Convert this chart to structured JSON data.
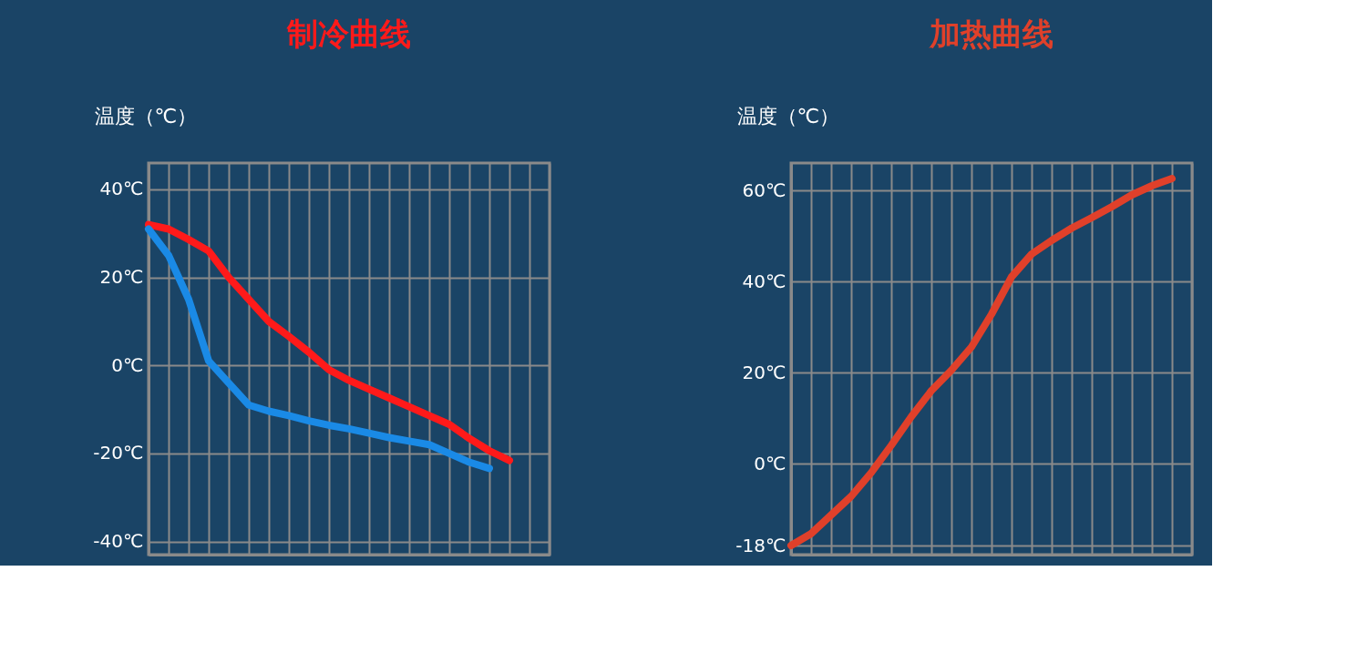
{
  "chart_data": [
    {
      "type": "line",
      "title": "制冷曲线",
      "ylabel": "温度（℃）",
      "categories": [
        null,
        null,
        null,
        null,
        null,
        null,
        null,
        null,
        null,
        null,
        null,
        null,
        null,
        null,
        null,
        null,
        null,
        null,
        null,
        null,
        null
      ],
      "series": [
        {
          "color": "#ff1a1a",
          "values": [
            32,
            31,
            28.6,
            26,
            20,
            15,
            10,
            6.6,
            3,
            -1,
            -3.4,
            -5.4,
            -7.4,
            -9.4,
            -11.4,
            -13.4,
            -16.6,
            -19.4,
            -21.6,
            null,
            null
          ]
        },
        {
          "color": "#1a8ae6",
          "values": [
            31,
            25,
            15,
            1,
            -4,
            -9,
            -10.4,
            -11.4,
            -12.6,
            -13.6,
            -14.4,
            -15.4,
            -16.4,
            -17.2,
            -18,
            -20,
            -22,
            -23.4,
            null,
            null,
            null
          ]
        }
      ],
      "ylim": [
        -43,
        46
      ],
      "yticks": [
        {
          "value": 40,
          "label": "40℃"
        },
        {
          "value": 20,
          "label": "20℃"
        },
        {
          "value": 0,
          "label": "0℃"
        },
        {
          "value": -20,
          "label": "-20℃"
        },
        {
          "value": -40,
          "label": "-40℃"
        }
      ],
      "grid": true,
      "tick_labels": "y"
    },
    {
      "type": "line",
      "title": "加热曲线",
      "ylabel": "温度（℃）",
      "categories": [
        null,
        null,
        null,
        null,
        null,
        null,
        null,
        null,
        null,
        null,
        null,
        null,
        null,
        null,
        null,
        null,
        null,
        null,
        null,
        null,
        null
      ],
      "series": [
        {
          "color": "#e0402a",
          "values": [
            -18,
            -15.4,
            -11.3,
            -7.2,
            -2,
            4,
            10.3,
            16,
            20.5,
            25.6,
            32.8,
            41,
            46,
            49,
            51.7,
            54,
            56.4,
            59,
            61,
            62.6,
            null
          ]
        }
      ],
      "ylim": [
        -20,
        66
      ],
      "yticks": [
        {
          "value": 60,
          "label": "60℃"
        },
        {
          "value": 40,
          "label": "40℃"
        },
        {
          "value": 20,
          "label": "20℃"
        },
        {
          "value": 0,
          "label": "0℃"
        },
        {
          "value": -18,
          "label": "-18℃"
        }
      ],
      "grid": true,
      "tick_labels": "y"
    }
  ]
}
